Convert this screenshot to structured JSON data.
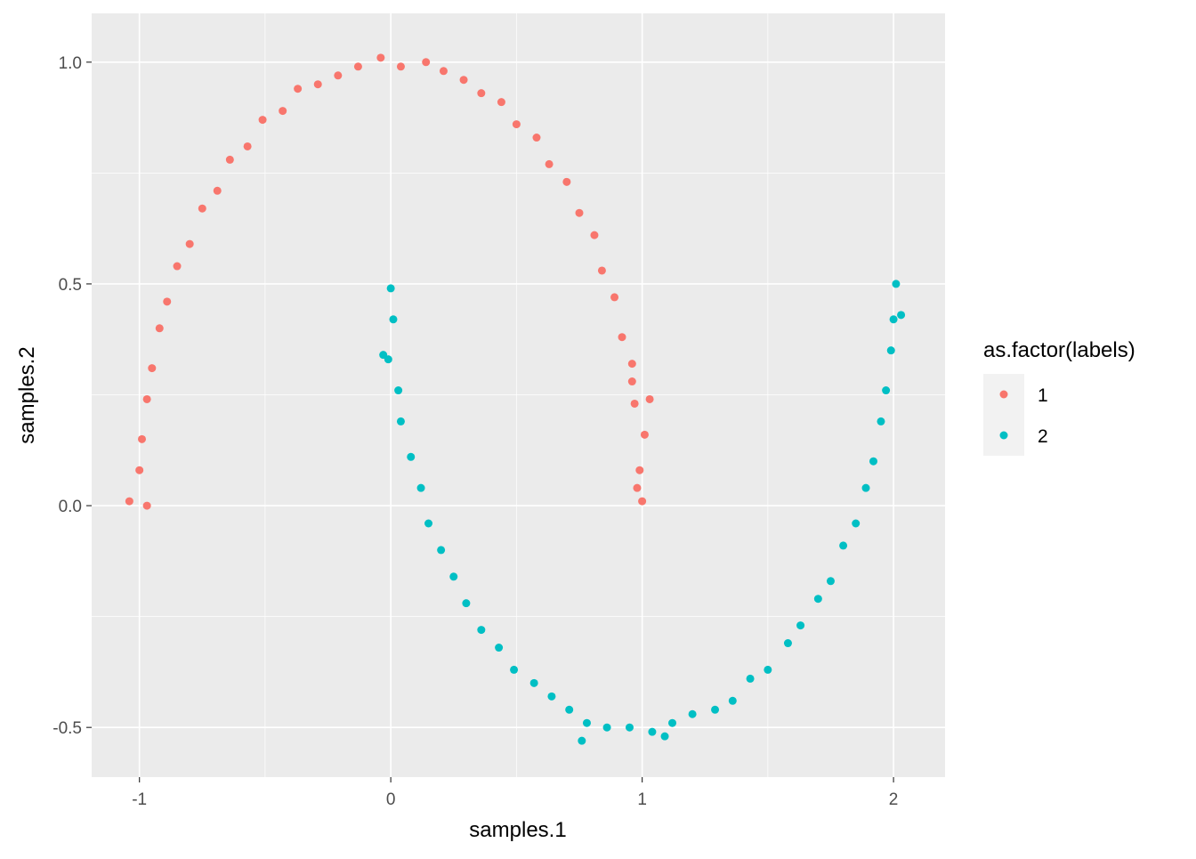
{
  "chart_data": {
    "type": "scatter",
    "title": "",
    "xlabel": "samples.1",
    "ylabel": "samples.2",
    "xlim": [
      -1.19,
      2.205
    ],
    "ylim": [
      -0.612,
      1.11
    ],
    "xticks": [
      -1,
      0,
      1,
      2
    ],
    "xtick_labels": [
      "-1",
      "0",
      "1",
      "2"
    ],
    "yticks": [
      -0.5,
      0,
      0.5,
      1
    ],
    "ytick_labels": [
      "-0.5",
      "0.0",
      "0.5",
      "1.0"
    ],
    "x_minor": [
      -0.5,
      0.5,
      1.5
    ],
    "y_minor": [
      -0.25,
      0.25,
      0.75
    ],
    "grid": true,
    "legend": {
      "title": "as.factor(labels)",
      "placement": "right",
      "entries": [
        "1",
        "2"
      ]
    },
    "series": [
      {
        "name": "1",
        "color": "#F8766D",
        "points": [
          [
            1.0,
            0.01
          ],
          [
            0.99,
            0.08
          ],
          [
            1.01,
            0.16
          ],
          [
            0.97,
            0.23
          ],
          [
            0.96,
            0.32
          ],
          [
            0.92,
            0.38
          ],
          [
            0.89,
            0.47
          ],
          [
            0.84,
            0.53
          ],
          [
            0.81,
            0.61
          ],
          [
            0.75,
            0.66
          ],
          [
            0.7,
            0.73
          ],
          [
            0.63,
            0.77
          ],
          [
            0.58,
            0.83
          ],
          [
            0.5,
            0.86
          ],
          [
            0.44,
            0.91
          ],
          [
            0.36,
            0.93
          ],
          [
            0.29,
            0.96
          ],
          [
            0.21,
            0.98
          ],
          [
            0.14,
            1.0
          ],
          [
            0.04,
            0.99
          ],
          [
            -0.04,
            1.01
          ],
          [
            -0.13,
            0.99
          ],
          [
            -0.21,
            0.97
          ],
          [
            -0.29,
            0.95
          ],
          [
            -0.37,
            0.94
          ],
          [
            -0.43,
            0.89
          ],
          [
            -0.51,
            0.87
          ],
          [
            -0.57,
            0.81
          ],
          [
            -0.64,
            0.78
          ],
          [
            -0.69,
            0.71
          ],
          [
            -0.75,
            0.67
          ],
          [
            -0.8,
            0.59
          ],
          [
            -0.85,
            0.54
          ],
          [
            -0.89,
            0.46
          ],
          [
            -0.92,
            0.4
          ],
          [
            -0.95,
            0.31
          ],
          [
            -0.97,
            0.24
          ],
          [
            -0.99,
            0.15
          ],
          [
            -1.0,
            0.08
          ],
          [
            -1.04,
            0.01
          ],
          [
            0.98,
            0.04
          ],
          [
            1.03,
            0.24
          ],
          [
            -0.97,
            0.0
          ],
          [
            0.96,
            0.28
          ]
        ]
      },
      {
        "name": "2",
        "color": "#00BFC4",
        "points": [
          [
            0.0,
            0.49
          ],
          [
            0.01,
            0.42
          ],
          [
            -0.01,
            0.33
          ],
          [
            0.03,
            0.26
          ],
          [
            0.04,
            0.19
          ],
          [
            0.08,
            0.11
          ],
          [
            0.12,
            0.04
          ],
          [
            0.15,
            -0.04
          ],
          [
            0.2,
            -0.1
          ],
          [
            0.25,
            -0.16
          ],
          [
            0.3,
            -0.22
          ],
          [
            0.36,
            -0.28
          ],
          [
            0.43,
            -0.32
          ],
          [
            0.49,
            -0.37
          ],
          [
            0.57,
            -0.4
          ],
          [
            0.64,
            -0.43
          ],
          [
            0.71,
            -0.46
          ],
          [
            0.78,
            -0.49
          ],
          [
            0.86,
            -0.5
          ],
          [
            0.95,
            -0.5
          ],
          [
            1.04,
            -0.51
          ],
          [
            1.12,
            -0.49
          ],
          [
            1.2,
            -0.47
          ],
          [
            1.29,
            -0.46
          ],
          [
            1.36,
            -0.44
          ],
          [
            1.43,
            -0.39
          ],
          [
            1.5,
            -0.37
          ],
          [
            1.58,
            -0.31
          ],
          [
            1.63,
            -0.27
          ],
          [
            1.7,
            -0.21
          ],
          [
            1.75,
            -0.17
          ],
          [
            1.8,
            -0.09
          ],
          [
            1.85,
            -0.04
          ],
          [
            1.89,
            0.04
          ],
          [
            1.92,
            0.1
          ],
          [
            1.95,
            0.19
          ],
          [
            1.97,
            0.26
          ],
          [
            1.99,
            0.35
          ],
          [
            2.0,
            0.42
          ],
          [
            2.01,
            0.5
          ],
          [
            0.76,
            -0.53
          ],
          [
            1.09,
            -0.52
          ],
          [
            -0.03,
            0.34
          ],
          [
            2.03,
            0.43
          ]
        ]
      }
    ]
  }
}
